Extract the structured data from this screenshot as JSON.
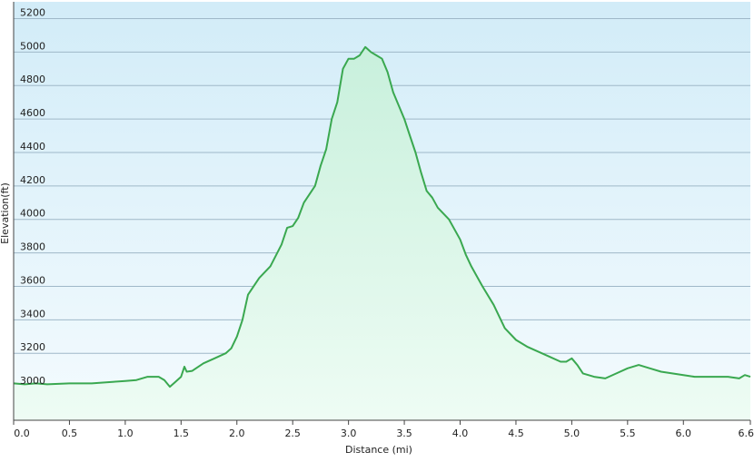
{
  "chart_data": {
    "type": "area",
    "title": "",
    "xlabel": "Distance  (mi)",
    "ylabel": "Elevation(ft)",
    "xlim": [
      0,
      6.6
    ],
    "ylim": [
      2800,
      5300
    ],
    "x_ticks": [
      "0.0",
      "0.5",
      "1.0",
      "1.5",
      "2.0",
      "2.5",
      "3.0",
      "3.5",
      "4.0",
      "4.5",
      "5.0",
      "5.5",
      "6.0",
      "6.6"
    ],
    "y_ticks": [
      "3000",
      "3200",
      "3400",
      "3600",
      "3800",
      "4000",
      "4200",
      "4400",
      "4600",
      "4800",
      "5000",
      "5200"
    ],
    "grid": true,
    "colors": {
      "line": "#3aa850",
      "fill_top": "#c8f0dc",
      "fill_bottom": "#eefcf4",
      "bg_top": "#d2ecf8",
      "bg_bottom": "#f4fbfe"
    },
    "series": [
      {
        "x": [
          0.0,
          0.1,
          0.2,
          0.3,
          0.5,
          0.7,
          0.9,
          1.0,
          1.1,
          1.2,
          1.3,
          1.35,
          1.4,
          1.45,
          1.5,
          1.53,
          1.55,
          1.6,
          1.7,
          1.8,
          1.9,
          1.95,
          2.0,
          2.05,
          2.1,
          2.2,
          2.3,
          2.4,
          2.45,
          2.5,
          2.55,
          2.6,
          2.7,
          2.75,
          2.8,
          2.85,
          2.9,
          2.95,
          3.0,
          3.05,
          3.1,
          3.15,
          3.2,
          3.25,
          3.3,
          3.35,
          3.4,
          3.45,
          3.5,
          3.55,
          3.6,
          3.65,
          3.7,
          3.75,
          3.8,
          3.9,
          4.0,
          4.05,
          4.1,
          4.15,
          4.2,
          4.3,
          4.4,
          4.5,
          4.6,
          4.7,
          4.8,
          4.9,
          4.95,
          5.0,
          5.05,
          5.1,
          5.2,
          5.3,
          5.4,
          5.5,
          5.6,
          5.7,
          5.8,
          5.9,
          6.0,
          6.1,
          6.2,
          6.3,
          6.4,
          6.5,
          6.55,
          6.6
        ],
        "y": [
          3020,
          3015,
          3020,
          3015,
          3020,
          3020,
          3030,
          3035,
          3040,
          3060,
          3060,
          3040,
          3000,
          3030,
          3060,
          3120,
          3090,
          3095,
          3140,
          3170,
          3200,
          3230,
          3300,
          3400,
          3550,
          3650,
          3720,
          3850,
          3950,
          3960,
          4010,
          4100,
          4200,
          4320,
          4420,
          4600,
          4700,
          4900,
          4960,
          4960,
          4980,
          5030,
          5000,
          4980,
          4960,
          4880,
          4760,
          4680,
          4600,
          4500,
          4400,
          4280,
          4170,
          4130,
          4070,
          4000,
          3880,
          3790,
          3720,
          3660,
          3600,
          3490,
          3350,
          3280,
          3240,
          3210,
          3180,
          3150,
          3150,
          3170,
          3130,
          3080,
          3060,
          3050,
          3080,
          3110,
          3130,
          3110,
          3090,
          3080,
          3070,
          3060,
          3060,
          3060,
          3060,
          3050,
          3070,
          3060
        ]
      }
    ]
  }
}
